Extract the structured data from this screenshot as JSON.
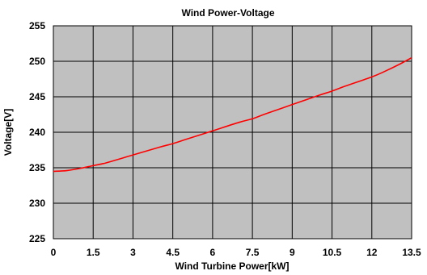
{
  "chart_data": {
    "type": "line",
    "title": "Wind Power-Voltage",
    "xlabel": "Wind Turbine Power[kW]",
    "ylabel": "Voltage[V]",
    "xlim": [
      0,
      13.5
    ],
    "ylim": [
      225,
      255
    ],
    "x_ticks": [
      0,
      1.5,
      3,
      4.5,
      6,
      7.5,
      9,
      10.5,
      12,
      13.5
    ],
    "x_tick_labels": [
      "0",
      "1.5",
      "3",
      "4.5",
      "6",
      "7.5",
      "9",
      "10.5",
      "12",
      "13.5"
    ],
    "y_ticks": [
      225,
      230,
      235,
      240,
      245,
      250,
      255
    ],
    "y_tick_labels": [
      "225",
      "230",
      "235",
      "240",
      "245",
      "250",
      "255"
    ],
    "grid": true,
    "plot_background": "#c0c0c0",
    "series": [
      {
        "color": "#ff0000",
        "x": [
          0,
          0.5,
          1,
          1.5,
          2,
          3,
          4,
          4.5,
          5,
          6,
          7,
          7.5,
          8,
          9,
          10,
          10.5,
          11,
          12,
          12.5,
          13,
          13.5
        ],
        "y": [
          234.5,
          234.6,
          234.9,
          235.3,
          235.7,
          236.8,
          237.9,
          238.4,
          239.0,
          240.2,
          241.4,
          241.9,
          242.6,
          243.9,
          245.2,
          245.8,
          246.5,
          247.8,
          248.6,
          249.5,
          250.5
        ]
      }
    ]
  }
}
